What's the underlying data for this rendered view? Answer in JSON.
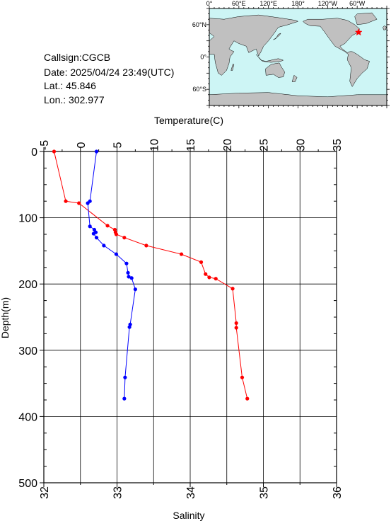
{
  "station": {
    "callsign_text": "Callsign:CGCB",
    "date_text": "Date:  2025/04/24 23:49(UTC)",
    "lat_text": "Lat.:  45.846",
    "lon_text": "Lon.:  302.977"
  },
  "map": {
    "lon_labels": [
      "0°",
      "60°E",
      "120°E",
      "180°",
      "120°W",
      "60°W"
    ],
    "lat_labels": [
      "60°N",
      "0°",
      "60°S"
    ],
    "ocean_color": "#cdf5f5",
    "land_color": "#c0c0c0",
    "marker_color": "#ff0000",
    "marker_icon": "star-icon",
    "marker_lon_text": "302.977",
    "marker_lat_text": "45.846"
  },
  "chart_data": {
    "type": "line",
    "top_axis": {
      "label": "Temperature(C)",
      "range": [
        -5,
        35
      ],
      "ticks": [
        "-5",
        "0",
        "5",
        "10",
        "15",
        "20",
        "25",
        "30",
        "35"
      ]
    },
    "bottom_axis": {
      "label": "Salinity",
      "range": [
        32,
        36
      ],
      "ticks": [
        "32",
        "33",
        "34",
        "35",
        "36"
      ]
    },
    "left_axis": {
      "label": "Depth(m)",
      "range": [
        0,
        500
      ],
      "inverted": true,
      "ticks": [
        "0",
        "100",
        "200",
        "300",
        "400",
        "500"
      ]
    },
    "grid": true,
    "series": [
      {
        "id": "temperature",
        "axis": "top",
        "color": "#ff0000",
        "points": [
          {
            "x": -3.6,
            "y": 0
          },
          {
            "x": -2.0,
            "y": 75
          },
          {
            "x": -0.2,
            "y": 78
          },
          {
            "x": 3.7,
            "y": 112
          },
          {
            "x": 4.7,
            "y": 118
          },
          {
            "x": 4.8,
            "y": 122
          },
          {
            "x": 4.9,
            "y": 125
          },
          {
            "x": 6.0,
            "y": 130
          },
          {
            "x": 9.0,
            "y": 142
          },
          {
            "x": 13.8,
            "y": 155
          },
          {
            "x": 16.5,
            "y": 167
          },
          {
            "x": 17.1,
            "y": 185
          },
          {
            "x": 17.6,
            "y": 190
          },
          {
            "x": 18.5,
            "y": 192
          },
          {
            "x": 20.8,
            "y": 207
          },
          {
            "x": 21.3,
            "y": 259
          },
          {
            "x": 21.3,
            "y": 266
          },
          {
            "x": 22.1,
            "y": 341
          },
          {
            "x": 22.8,
            "y": 373
          }
        ]
      },
      {
        "id": "salinity",
        "axis": "bottom",
        "color": "#0000ff",
        "points": [
          {
            "x": 32.72,
            "y": 0
          },
          {
            "x": 32.63,
            "y": 75
          },
          {
            "x": 32.6,
            "y": 78
          },
          {
            "x": 32.63,
            "y": 113
          },
          {
            "x": 32.69,
            "y": 118
          },
          {
            "x": 32.71,
            "y": 122
          },
          {
            "x": 32.68,
            "y": 124
          },
          {
            "x": 32.72,
            "y": 130
          },
          {
            "x": 32.82,
            "y": 142
          },
          {
            "x": 32.99,
            "y": 155
          },
          {
            "x": 33.13,
            "y": 169
          },
          {
            "x": 33.15,
            "y": 183
          },
          {
            "x": 33.16,
            "y": 189
          },
          {
            "x": 33.2,
            "y": 191
          },
          {
            "x": 33.25,
            "y": 208
          },
          {
            "x": 33.18,
            "y": 261
          },
          {
            "x": 33.17,
            "y": 265
          },
          {
            "x": 33.11,
            "y": 341
          },
          {
            "x": 33.1,
            "y": 373
          }
        ]
      }
    ]
  }
}
